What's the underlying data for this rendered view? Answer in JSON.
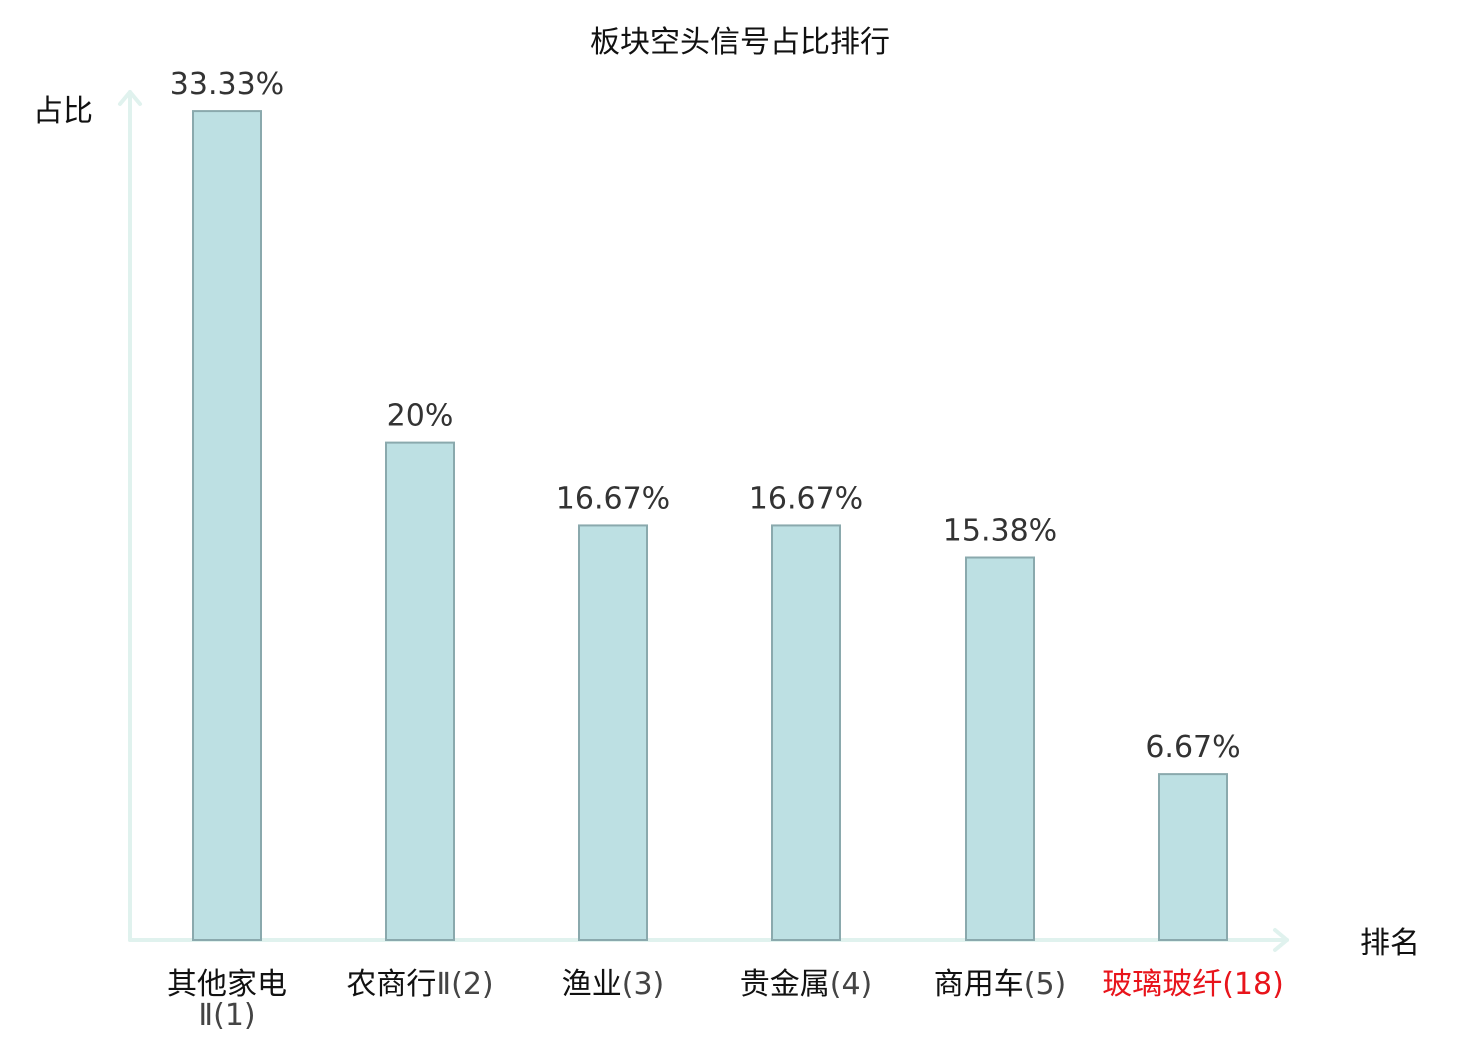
{
  "chart_data": {
    "type": "bar",
    "title": "板块空头信号占比排行",
    "ylabel": "占比",
    "xlabel": "排名",
    "categories": [
      {
        "name": "其他家电",
        "rank": "Ⅱ(1)",
        "highlight": false
      },
      {
        "name": "农商行",
        "rank": "Ⅱ(2)",
        "highlight": false
      },
      {
        "name": "渔业",
        "rank": "(3)",
        "highlight": false
      },
      {
        "name": "贵金属",
        "rank": "(4)",
        "highlight": false
      },
      {
        "name": "商用车",
        "rank": "(5)",
        "highlight": false
      },
      {
        "name": "玻璃玻纤",
        "rank": "(18)",
        "highlight": true
      }
    ],
    "values": [
      33.33,
      20,
      16.67,
      16.67,
      15.38,
      6.67
    ],
    "value_labels": [
      "33.33%",
      "20%",
      "16.67%",
      "16.67%",
      "15.38%",
      "6.67%"
    ],
    "ylim": [
      0,
      34.5
    ],
    "grid": false,
    "legend": "none",
    "colors": {
      "bar_fill": "#bde0e3",
      "bar_stroke": "#8aa9ad",
      "axis": "#e0f2ee",
      "label_text": "#111111",
      "rank_text": "#444444",
      "value_text": "#333333",
      "highlight_text": "#e8141b"
    }
  }
}
